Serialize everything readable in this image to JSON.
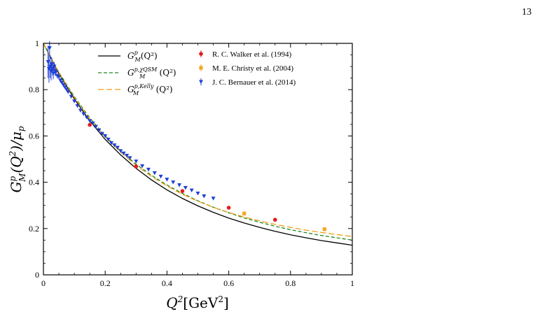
{
  "page": {
    "number": "13"
  },
  "chart_data": {
    "type": "line",
    "xlabel": "Q²[GeV²]",
    "ylabel": "G_M^p(Q²)/μ_p",
    "xlim": [
      0,
      1
    ],
    "ylim": [
      0,
      1
    ],
    "xticks": [
      "0",
      "0.2",
      "0.4",
      "0.6",
      "0.8",
      "1"
    ],
    "xtick_values": [
      0,
      0.2,
      0.4,
      0.6,
      0.8,
      1.0
    ],
    "yticks": [
      "0",
      "0.2",
      "0.4",
      "0.6",
      "0.8",
      "1"
    ],
    "ytick_values": [
      0,
      0.2,
      0.4,
      0.6,
      0.8,
      1.0
    ],
    "grid": false,
    "legend_position": "top",
    "series": [
      {
        "name": "G_M^p(Q²)",
        "kind": "line",
        "style": "solid",
        "color": "#000000",
        "x": [
          0,
          0.05,
          0.1,
          0.15,
          0.2,
          0.25,
          0.3,
          0.35,
          0.4,
          0.45,
          0.5,
          0.55,
          0.6,
          0.65,
          0.7,
          0.75,
          0.8,
          0.85,
          0.9,
          0.95,
          1.0
        ],
        "y": [
          1.0,
          0.87,
          0.76,
          0.665,
          0.585,
          0.518,
          0.46,
          0.41,
          0.367,
          0.33,
          0.298,
          0.27,
          0.245,
          0.224,
          0.205,
          0.188,
          0.173,
          0.16,
          0.148,
          0.138,
          0.128
        ]
      },
      {
        "name": "G_M^{p,χQSM}(Q²)",
        "kind": "line",
        "style": "dashed",
        "color": "#1e8a1e",
        "x": [
          0,
          0.05,
          0.1,
          0.15,
          0.2,
          0.25,
          0.3,
          0.35,
          0.4,
          0.45,
          0.5,
          0.55,
          0.6,
          0.65,
          0.7,
          0.75,
          0.8,
          0.85,
          0.9,
          0.95,
          1.0
        ],
        "y": [
          1.0,
          0.875,
          0.77,
          0.678,
          0.6,
          0.535,
          0.478,
          0.43,
          0.388,
          0.352,
          0.32,
          0.292,
          0.268,
          0.246,
          0.227,
          0.21,
          0.195,
          0.182,
          0.17,
          0.16,
          0.15
        ]
      },
      {
        "name": "G_M^{p,Kelly}(Q²)",
        "kind": "line",
        "style": "dashed",
        "color": "#f39c12",
        "x": [
          0,
          0.05,
          0.1,
          0.15,
          0.2,
          0.25,
          0.3,
          0.35,
          0.4,
          0.45,
          0.5,
          0.55,
          0.6,
          0.65,
          0.7,
          0.75,
          0.8,
          0.85,
          0.9,
          0.95,
          1.0
        ],
        "y": [
          1.0,
          0.873,
          0.766,
          0.674,
          0.596,
          0.53,
          0.473,
          0.425,
          0.384,
          0.348,
          0.318,
          0.292,
          0.269,
          0.25,
          0.233,
          0.218,
          0.205,
          0.193,
          0.183,
          0.174,
          0.166
        ]
      },
      {
        "name": "R. C. Walker et al. (1994)",
        "kind": "points",
        "marker": "circle",
        "color": "#e61919",
        "x": [
          0.15,
          0.3,
          0.45,
          0.6,
          0.75
        ],
        "y": [
          0.648,
          0.468,
          0.362,
          0.29,
          0.238
        ]
      },
      {
        "name": "M. E. Christy et al. (2004)",
        "kind": "points",
        "marker": "square",
        "color": "#f5a623",
        "x": [
          0.65,
          0.91
        ],
        "y": [
          0.265,
          0.197
        ]
      },
      {
        "name": "J. C. Bernauer et al. (2014)",
        "kind": "points",
        "marker": "triangle-down",
        "color": "#1f3fd6",
        "x": [
          0.015,
          0.018,
          0.02,
          0.022,
          0.025,
          0.027,
          0.03,
          0.032,
          0.035,
          0.038,
          0.04,
          0.045,
          0.05,
          0.055,
          0.06,
          0.065,
          0.07,
          0.075,
          0.08,
          0.09,
          0.1,
          0.11,
          0.12,
          0.13,
          0.14,
          0.15,
          0.16,
          0.17,
          0.18,
          0.19,
          0.2,
          0.21,
          0.22,
          0.23,
          0.24,
          0.25,
          0.26,
          0.27,
          0.28,
          0.3,
          0.32,
          0.34,
          0.36,
          0.38,
          0.4,
          0.42,
          0.44,
          0.46,
          0.48,
          0.5,
          0.52,
          0.55
        ],
        "y": [
          0.92,
          0.89,
          0.98,
          0.9,
          0.88,
          0.91,
          0.89,
          0.87,
          0.9,
          0.88,
          0.875,
          0.86,
          0.855,
          0.84,
          0.83,
          0.82,
          0.81,
          0.8,
          0.79,
          0.77,
          0.75,
          0.73,
          0.71,
          0.695,
          0.68,
          0.665,
          0.655,
          0.64,
          0.625,
          0.61,
          0.6,
          0.585,
          0.57,
          0.56,
          0.55,
          0.535,
          0.525,
          0.515,
          0.505,
          0.49,
          0.47,
          0.455,
          0.44,
          0.425,
          0.412,
          0.4,
          0.388,
          0.376,
          0.365,
          0.352,
          0.34,
          0.33
        ],
        "err": [
          0.07,
          0.06,
          0.03,
          0.05,
          0.04,
          0.03,
          0.03,
          0.025,
          0.02,
          0.02,
          0.015,
          0.012,
          0.01,
          0.01,
          0.008,
          0.008,
          0.006,
          0.006,
          0.006,
          0.005,
          0.005,
          0.005,
          0.004,
          0.004,
          0.004,
          0.004,
          0.004,
          0.004,
          0.004,
          0.004,
          0.004,
          0.004,
          0.004,
          0.004,
          0.004,
          0.004,
          0.004,
          0.004,
          0.004,
          0.004,
          0.004,
          0.004,
          0.004,
          0.004,
          0.004,
          0.004,
          0.004,
          0.004,
          0.004,
          0.004,
          0.004,
          0.004
        ]
      }
    ],
    "legend": {
      "left": [
        {
          "label_base": "G",
          "label_sub": "M",
          "label_sup": "p",
          "label_tail": "(Q²)",
          "series": 0
        },
        {
          "label_base": "G",
          "label_sub": "M",
          "label_sup": "p,χQSM",
          "label_tail": "(Q²)",
          "series": 1
        },
        {
          "label_base": "G",
          "label_sub": "M",
          "label_sup": "p,Kelly",
          "label_tail": "(Q²)",
          "series": 2
        }
      ],
      "right": [
        {
          "label": "R. C. Walker et al. (1994)",
          "series": 3
        },
        {
          "label": "M. E. Christy et al. (2004)",
          "series": 4
        },
        {
          "label": "J. C. Bernauer et al. (2014)",
          "series": 5
        }
      ]
    }
  }
}
